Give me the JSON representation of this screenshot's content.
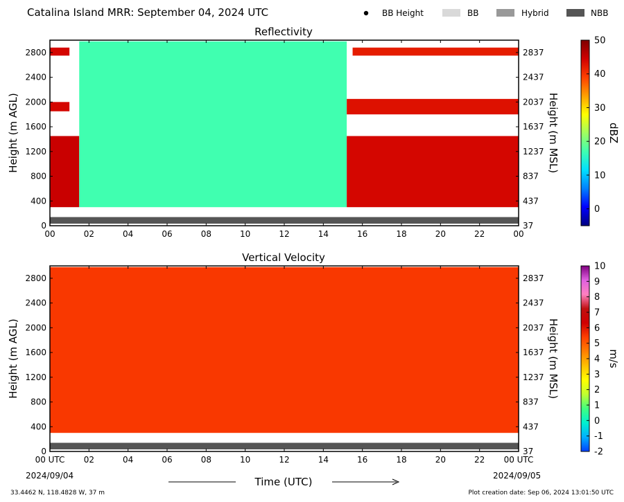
{
  "header": {
    "title": "Catalina Island MRR:  September 04, 2024 UTC",
    "legend": [
      {
        "label": "BB Height",
        "marker": "dot",
        "color": "#000000"
      },
      {
        "label": "BB",
        "marker": "box",
        "color": "#d9d9d9"
      },
      {
        "label": "Hybrid",
        "marker": "box",
        "color": "#999999"
      },
      {
        "label": "NBB",
        "marker": "box",
        "color": "#555555"
      }
    ]
  },
  "footer": {
    "location": "33.4462 N, 118.4828 W, 37 m",
    "creation": "Plot creation date: Sep 06, 2024 13:01:50 UTC",
    "xlabel": "Time (UTC)",
    "start_date": "2024/09/04",
    "end_date": "2024/09/05"
  },
  "chart_data": [
    {
      "type": "heatmap",
      "title": "Reflectivity",
      "xlabel": "",
      "ylabel": "Height (m AGL)",
      "y2label": "Height (m MSL)",
      "x_ticks": [
        "00",
        "02",
        "04",
        "06",
        "08",
        "10",
        "12",
        "14",
        "16",
        "18",
        "20",
        "22",
        "00"
      ],
      "xlim": [
        0,
        24
      ],
      "ylim": [
        0,
        3000
      ],
      "y_ticks": [
        0,
        400,
        800,
        1200,
        1600,
        2000,
        2400,
        2800
      ],
      "y2_ticks": [
        37,
        437,
        837,
        1237,
        1637,
        2037,
        2437,
        2837
      ],
      "colorbar": {
        "label": "dBZ",
        "range": [
          -5,
          50
        ],
        "ticks": [
          0,
          10,
          20,
          30,
          40,
          50
        ],
        "colors": [
          "#000080",
          "#0000ff",
          "#0080ff",
          "#00e0ff",
          "#40ffb0",
          "#a0ff60",
          "#ffff00",
          "#ffa000",
          "#ff4000",
          "#d00000",
          "#800000"
        ]
      },
      "bright_band_type": "NBB",
      "regions": [
        {
          "x": [
            0.0,
            1.5
          ],
          "y": [
            300,
            1450
          ],
          "dbz": 45
        },
        {
          "x": [
            0.0,
            1.0
          ],
          "y": [
            1850,
            2000
          ],
          "dbz": 44
        },
        {
          "x": [
            0.0,
            1.0
          ],
          "y": [
            2750,
            2880
          ],
          "dbz": 44
        },
        {
          "x": [
            1.5,
            15.2
          ],
          "y": [
            300,
            2980
          ],
          "dbz": 17
        },
        {
          "x": [
            15.2,
            24.0
          ],
          "y": [
            300,
            1450
          ],
          "dbz": 44
        },
        {
          "x": [
            15.2,
            24.0
          ],
          "y": [
            1800,
            2050
          ],
          "dbz": 43
        },
        {
          "x": [
            15.5,
            24.0
          ],
          "y": [
            2750,
            2880
          ],
          "dbz": 42
        }
      ]
    },
    {
      "type": "heatmap",
      "title": "Vertical Velocity",
      "xlabel": "Time (UTC)",
      "ylabel": "Height (m AGL)",
      "y2label": "Height (m MSL)",
      "x_ticks": [
        "00 UTC",
        "02",
        "04",
        "06",
        "08",
        "10",
        "12",
        "14",
        "16",
        "18",
        "20",
        "22",
        "00 UTC"
      ],
      "xlim": [
        0,
        24
      ],
      "ylim": [
        0,
        3000
      ],
      "y_ticks": [
        0,
        400,
        800,
        1200,
        1600,
        2000,
        2400,
        2800
      ],
      "y2_ticks": [
        37,
        437,
        837,
        1237,
        1637,
        2037,
        2437,
        2837
      ],
      "colorbar": {
        "label": "m/s",
        "range": [
          -2,
          10
        ],
        "ticks": [
          -2,
          -1,
          0,
          1,
          2,
          3,
          4,
          5,
          6,
          7,
          8,
          9,
          10
        ],
        "colors": [
          "#0040ff",
          "#00b0ff",
          "#00f0d0",
          "#40ff80",
          "#c0ff30",
          "#ffff00",
          "#ffc000",
          "#ff8000",
          "#ff4000",
          "#d00000",
          "#c01010",
          "#ff80c0",
          "#e060e0",
          "#800080"
        ]
      },
      "bright_band_type": "NBB",
      "regions": [
        {
          "x": [
            0.0,
            24.0
          ],
          "y": [
            300,
            2980
          ],
          "ms": 5.5
        }
      ]
    }
  ]
}
